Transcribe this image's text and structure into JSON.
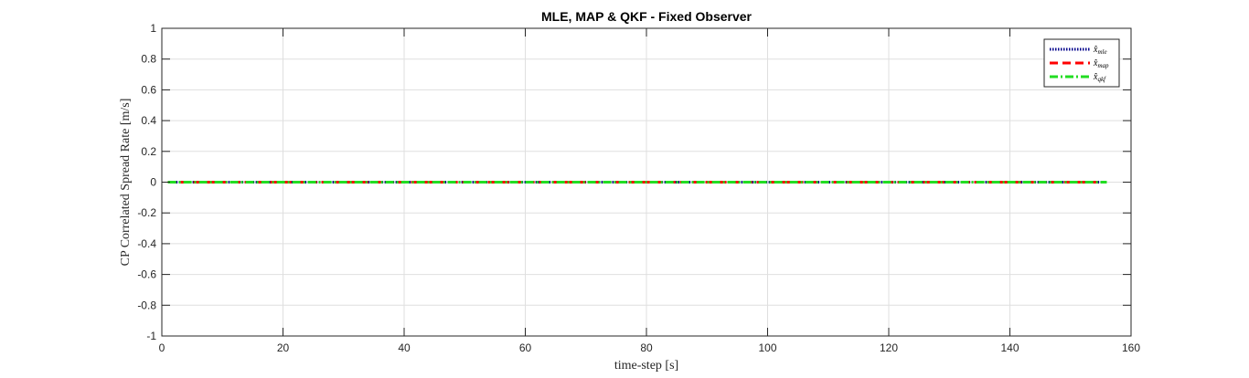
{
  "chart_data": {
    "type": "line",
    "title": "MLE, MAP & QKF  - Fixed Observer",
    "xlabel": "time-step [s]",
    "ylabel": "CP Correlated Spread Rate [m/s]",
    "xlim": [
      0,
      160
    ],
    "ylim": [
      -1,
      1
    ],
    "xticks": [
      0,
      20,
      40,
      60,
      80,
      100,
      120,
      140,
      160
    ],
    "yticks": [
      -1,
      -0.8,
      -0.6,
      -0.4,
      -0.2,
      0,
      0.2,
      0.4,
      0.6,
      0.8,
      1
    ],
    "xtick_labels": [
      "0",
      "20",
      "40",
      "60",
      "80",
      "100",
      "120",
      "140",
      "160"
    ],
    "ytick_labels": [
      "-1",
      "-0.8",
      "-0.6",
      "-0.4",
      "-0.2",
      "0",
      "0.2",
      "0.4",
      "0.6",
      "0.8",
      "1"
    ],
    "grid": true,
    "legend_position": "top-right",
    "series": [
      {
        "name": "x̂_mle",
        "legend_base": "x̂",
        "legend_sub": "mle",
        "color": "#00008b",
        "style": "dotted",
        "x": [
          1,
          156
        ],
        "y": [
          0,
          0
        ]
      },
      {
        "name": "x̂_map",
        "legend_base": "x̂",
        "legend_sub": "map",
        "color": "#ff0000",
        "style": "dashed",
        "x": [
          1,
          156
        ],
        "y": [
          0,
          0
        ]
      },
      {
        "name": "x̂_qkf",
        "legend_base": "x̂",
        "legend_sub": "qkf",
        "color": "#22dd22",
        "style": "dashdot",
        "x": [
          1,
          156
        ],
        "y": [
          0,
          0
        ]
      }
    ]
  }
}
